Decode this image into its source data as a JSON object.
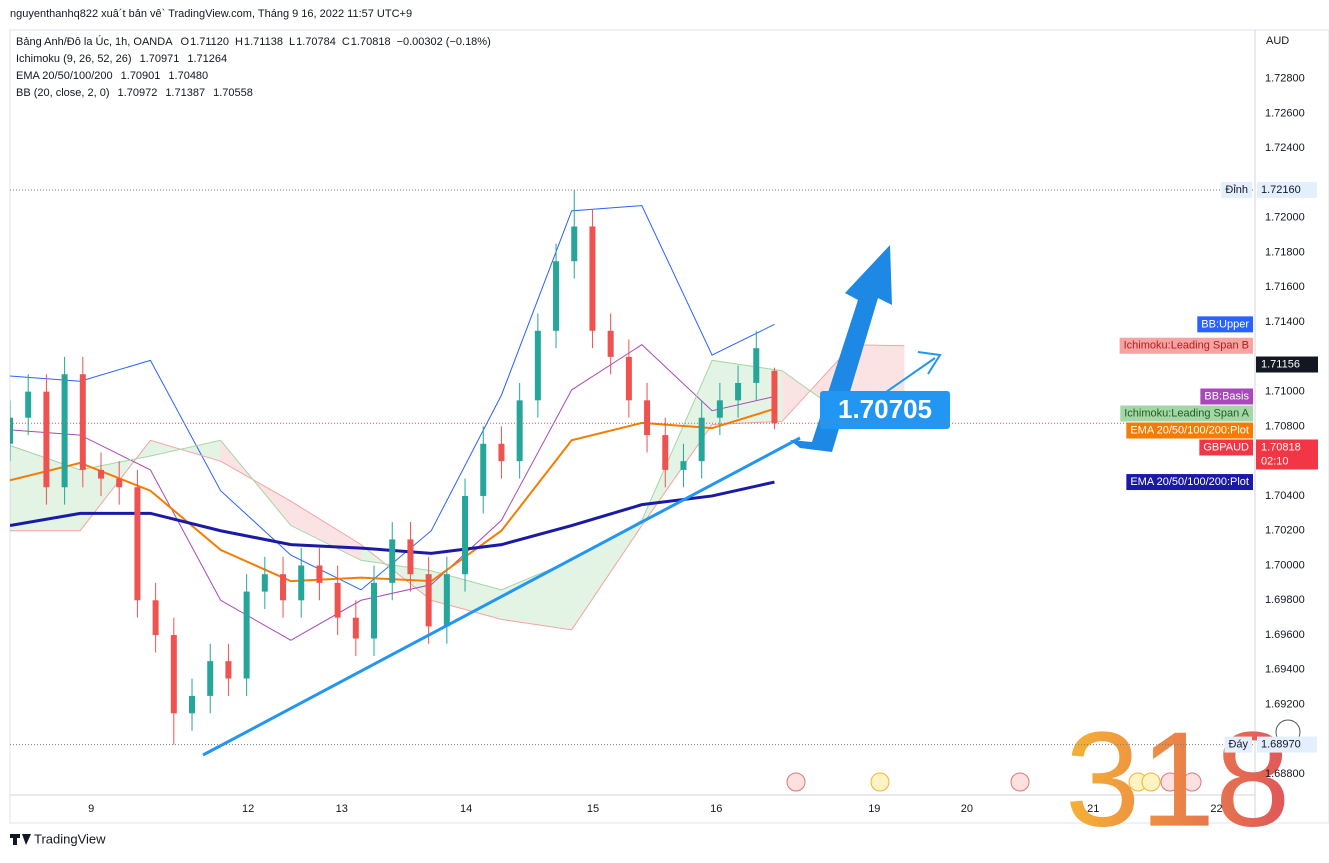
{
  "header": {
    "published": "nguyenthanhq822 xuâ´t bản vê` TradingView.com, Tháng 9 16, 2022 11:57 UTC+9",
    "symbol": "Bảng Anh/Đô la Úc, 1h, OANDA",
    "ohlc": [
      {
        "key": "O",
        "text": "1.71120"
      },
      {
        "key": "H",
        "text": "1.71138"
      },
      {
        "key": "L",
        "text": "1.70784"
      },
      {
        "key": "C",
        "text": "1.70818"
      }
    ],
    "change": "−0.00302 (−0.18%)",
    "indicators": [
      {
        "name": "Ichimoku (9, 26, 52, 26)",
        "values": [
          {
            "text": "1.70971",
            "color": "#66bb6a"
          },
          {
            "text": "1.71264",
            "color": "#ef9a9a"
          }
        ]
      },
      {
        "name": "EMA 20/50/100/200",
        "values": [
          {
            "text": "1.70901",
            "color": "#f57c00"
          },
          {
            "text": "1.70480",
            "color": "#1a1aa6"
          }
        ]
      },
      {
        "name": "BB (20, close, 2, 0)",
        "values": [
          {
            "text": "1.70972",
            "color": "#ab47bc"
          },
          {
            "text": "1.71387",
            "color": "#2962ff"
          },
          {
            "text": "1.70558",
            "color": "#2962ff"
          }
        ]
      }
    ]
  },
  "chart_data": {
    "type": "candlestick",
    "currency": "AUD",
    "up_color": "#26a69a",
    "down_color": "#ef5350",
    "x": [
      0,
      3.5,
      7,
      10.5,
      14,
      17.5,
      21,
      24.5,
      28,
      31.5,
      35,
      38.5,
      42,
      45.5,
      49,
      52.5,
      56,
      59.5,
      63,
      66.5,
      70,
      73.5,
      77,
      80.5,
      84,
      87.5,
      91,
      94.5,
      98,
      101.5,
      105,
      108.5,
      112,
      115.5,
      119,
      122.5,
      126,
      129.5,
      133,
      136.5,
      140,
      143.5,
      147
    ],
    "open": [
      1.707,
      1.7085,
      1.71,
      1.7045,
      1.711,
      1.7055,
      1.705,
      1.7045,
      1.698,
      1.696,
      1.6915,
      1.6925,
      1.6945,
      1.6935,
      1.6985,
      1.6995,
      1.698,
      1.7,
      1.699,
      1.697,
      1.6958,
      1.699,
      1.7015,
      1.6995,
      1.6965,
      1.6995,
      1.704,
      1.707,
      1.706,
      1.7095,
      1.7135,
      1.7175,
      1.7195,
      1.7135,
      1.712,
      1.7095,
      1.7075,
      1.7055,
      1.706,
      1.7085,
      1.7095,
      1.7105,
      1.7112
    ],
    "high": [
      1.7095,
      1.711,
      1.711,
      1.712,
      1.712,
      1.7065,
      1.706,
      1.7055,
      1.699,
      1.697,
      1.6935,
      1.6955,
      1.6955,
      1.6995,
      1.7005,
      1.7005,
      1.701,
      1.701,
      1.7,
      1.698,
      1.7,
      1.7025,
      1.7025,
      1.7005,
      1.7005,
      1.705,
      1.708,
      1.708,
      1.7105,
      1.7145,
      1.7185,
      1.7216,
      1.7205,
      1.7145,
      1.713,
      1.7105,
      1.7085,
      1.707,
      1.7095,
      1.7105,
      1.7115,
      1.7135,
      1.71138
    ],
    "low": [
      1.706,
      1.7075,
      1.7035,
      1.7035,
      1.7045,
      1.704,
      1.7035,
      1.697,
      1.695,
      1.6897,
      1.6905,
      1.6915,
      1.6925,
      1.6925,
      1.6975,
      1.697,
      1.697,
      1.698,
      1.696,
      1.6948,
      1.6948,
      1.698,
      1.6985,
      1.6955,
      1.6955,
      1.6985,
      1.703,
      1.705,
      1.705,
      1.7085,
      1.7125,
      1.7165,
      1.7125,
      1.711,
      1.7085,
      1.7065,
      1.7045,
      1.7045,
      1.705,
      1.7075,
      1.7085,
      1.7095,
      1.70784
    ],
    "close": [
      1.7085,
      1.71,
      1.7045,
      1.711,
      1.7055,
      1.705,
      1.7045,
      1.698,
      1.696,
      1.6915,
      1.6925,
      1.6945,
      1.6935,
      1.6985,
      1.6995,
      1.698,
      1.7,
      1.699,
      1.697,
      1.6958,
      1.699,
      1.7015,
      1.6995,
      1.6965,
      1.6995,
      1.704,
      1.707,
      1.706,
      1.7095,
      1.7135,
      1.7175,
      1.7195,
      1.7135,
      1.712,
      1.7095,
      1.7075,
      1.7055,
      1.706,
      1.7085,
      1.7095,
      1.7105,
      1.7125,
      1.70818
    ],
    "lines": [
      {
        "name": "BB:Upper",
        "color": "#2962ff",
        "badge_text": "#ffffff",
        "width": 1,
        "x": [
          0,
          13.5,
          27,
          40.5,
          54,
          67.5,
          81,
          94.5,
          108,
          121.5,
          135,
          147
        ],
        "values": [
          1.7109,
          1.7106,
          1.7118,
          1.7043,
          1.7006,
          1.6986,
          1.702,
          1.7098,
          1.7204,
          1.7207,
          1.7121,
          1.71387
        ]
      },
      {
        "name": "Ichimoku:Leading Span B",
        "color": "#f5a3a3",
        "badge_text": "#b71c1c",
        "width": 1,
        "x": [
          0,
          13.5,
          27,
          40.5,
          54,
          67.5,
          81,
          94.5,
          108,
          121.5,
          135,
          148.5,
          162,
          172
        ],
        "values": [
          1.702,
          1.702,
          1.7072,
          1.706,
          1.7037,
          1.7012,
          1.698,
          1.6969,
          1.6963,
          1.7023,
          1.7081,
          1.7083,
          1.7127,
          1.71264
        ]
      },
      {
        "name": "BB:Basis",
        "color": "#ab47bc",
        "badge_text": "#ffffff",
        "width": 1,
        "x": [
          0,
          13.5,
          27,
          40.5,
          54,
          67.5,
          81,
          94.5,
          108,
          121.5,
          135,
          147
        ],
        "values": [
          1.7078,
          1.7075,
          1.7055,
          1.698,
          1.6957,
          1.698,
          1.6989,
          1.7026,
          1.7101,
          1.7127,
          1.7089,
          1.70972
        ]
      },
      {
        "name": "Ichimoku:Leading Span A",
        "color": "#a5d6a7",
        "badge_text": "#1b5e20",
        "width": 1,
        "x": [
          0,
          13.5,
          27,
          40.5,
          54,
          67.5,
          81,
          94.5,
          108,
          121.5,
          135,
          148.5,
          162,
          172
        ],
        "values": [
          1.7069,
          1.7055,
          1.7063,
          1.7072,
          1.7023,
          1.7003,
          1.6997,
          1.6986,
          1.7003,
          1.7026,
          1.7118,
          1.7112,
          1.7083,
          1.70971
        ]
      },
      {
        "name": "EMA 20/50/100/200:Plot",
        "color": "#f57c00",
        "badge_text": "#ffffff",
        "width": 2,
        "x": [
          0,
          13.5,
          27,
          40.5,
          54,
          67.5,
          81,
          94.5,
          108,
          121.5,
          135,
          147
        ],
        "values": [
          1.7049,
          1.7059,
          1.7043,
          1.7009,
          1.6991,
          1.6993,
          1.6991,
          1.702,
          1.7072,
          1.7082,
          1.7079,
          1.70901
        ]
      },
      {
        "name": "EMA 20/50/100/200:Plot",
        "color": "#1a1aa6",
        "badge_text": "#ffffff",
        "width": 3,
        "x": [
          0,
          13.5,
          27,
          40.5,
          54,
          67.5,
          81,
          94.5,
          108,
          121.5,
          135,
          147
        ],
        "values": [
          1.7023,
          1.703,
          1.703,
          1.702,
          1.7012,
          1.701,
          1.7007,
          1.7012,
          1.7023,
          1.7035,
          1.704,
          1.7048
        ]
      }
    ],
    "last_price": {
      "name": "GBPAUD",
      "label": "1.70818",
      "countdown": "02:10"
    },
    "price_badges": [
      {
        "value": 1.71156,
        "label": "1.71156"
      }
    ],
    "extremes": [
      {
        "name": "Đỉnh",
        "value": 1.7216,
        "label": "1.72160"
      },
      {
        "name": "Đáy",
        "value": 1.6897,
        "label": "1.68970"
      }
    ],
    "annotation": "1.70705",
    "xlim": [
      0,
      239.4
    ],
    "xticks": [
      {
        "value": 15.6,
        "label": "9"
      },
      {
        "value": 45.8,
        "label": "12"
      },
      {
        "value": 63.8,
        "label": "13"
      },
      {
        "value": 87.7,
        "label": "14"
      },
      {
        "value": 112.1,
        "label": "15"
      },
      {
        "value": 135.8,
        "label": "16"
      },
      {
        "value": 166.2,
        "label": "19"
      },
      {
        "value": 184,
        "label": "20"
      },
      {
        "value": 208.3,
        "label": "21"
      },
      {
        "value": 232,
        "label": "22"
      }
    ],
    "ylim": [
      1.6868,
      1.7308
    ],
    "yticks": [
      {
        "value": 1.728,
        "label": "1.72800"
      },
      {
        "value": 1.726,
        "label": "1.72600"
      },
      {
        "value": 1.724,
        "label": "1.72400"
      },
      {
        "value": 1.72,
        "label": "1.72000"
      },
      {
        "value": 1.718,
        "label": "1.71800"
      },
      {
        "value": 1.716,
        "label": "1.71600"
      },
      {
        "value": 1.714,
        "label": "1.71400"
      },
      {
        "value": 1.71,
        "label": "1.71000"
      },
      {
        "value": 1.708,
        "label": "1.70800"
      },
      {
        "value": 1.704,
        "label": "1.70400"
      },
      {
        "value": 1.702,
        "label": "1.70200"
      },
      {
        "value": 1.7,
        "label": "1.70000"
      },
      {
        "value": 1.698,
        "label": "1.69800"
      },
      {
        "value": 1.696,
        "label": "1.69600"
      },
      {
        "value": 1.694,
        "label": "1.69400"
      },
      {
        "value": 1.692,
        "label": "1.69200"
      },
      {
        "value": 1.688,
        "label": "1.68800"
      }
    ],
    "grid": false
  },
  "watermark": "318",
  "footer": "TradingView"
}
